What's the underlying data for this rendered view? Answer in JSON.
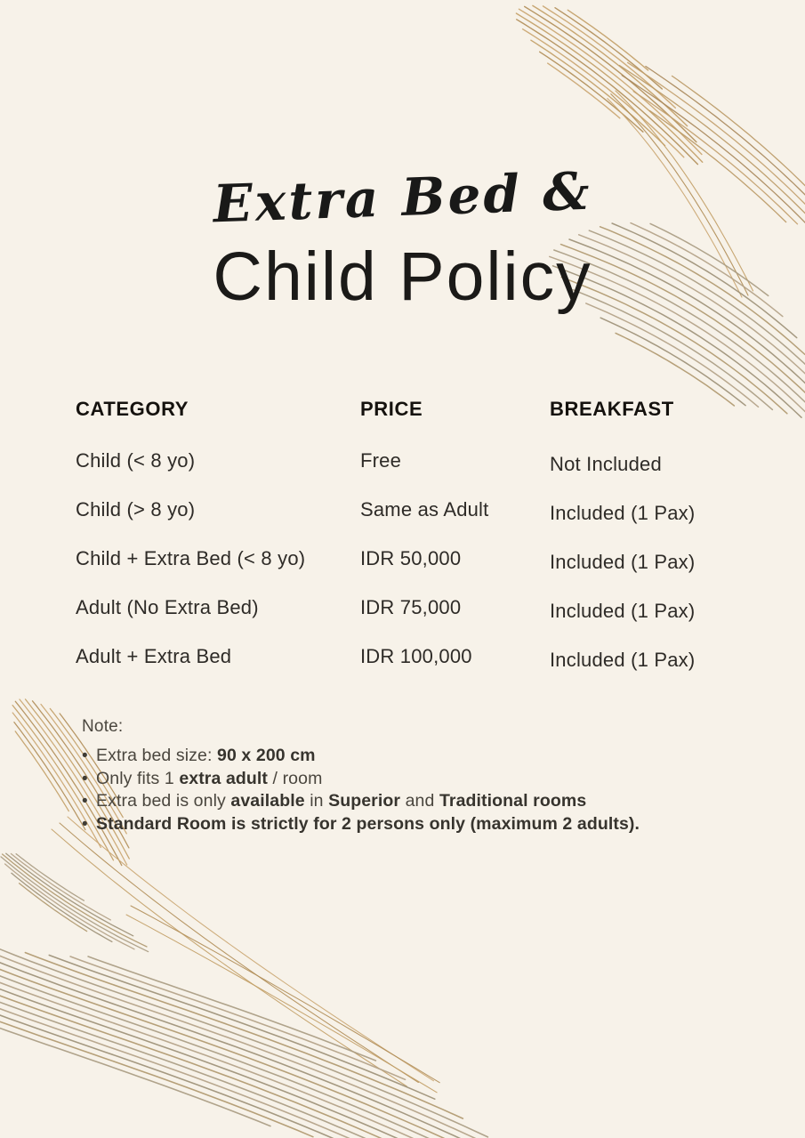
{
  "page": {
    "background_color": "#f7f2e9",
    "brush_color": "#b3946a",
    "text_color": "#2e2b27"
  },
  "title": {
    "script_line": "Extra Bed &",
    "main_line": "Child Policy"
  },
  "table": {
    "headers": [
      "CATEGORY",
      "PRICE",
      "BREAKFAST"
    ],
    "rows": [
      {
        "category": "Child (< 8 yo)",
        "price": "Free",
        "breakfast": "Not Included"
      },
      {
        "category": "Child (> 8 yo)",
        "price": "Same as Adult",
        "breakfast": "Included (1 Pax)"
      },
      {
        "category": "Child + Extra Bed (< 8 yo)",
        "price": "IDR 50,000",
        "breakfast": "Included (1 Pax)"
      },
      {
        "category": "Adult (No Extra Bed)",
        "price": "IDR 75,000",
        "breakfast": "Included (1 Pax)"
      },
      {
        "category": "Adult + Extra Bed",
        "price": "IDR 100,000",
        "breakfast": "Included (1 Pax)"
      }
    ]
  },
  "notes": {
    "label": "Note:",
    "bullet": "•",
    "items": [
      {
        "segments": [
          {
            "text": "Extra bed size: ",
            "bold": false
          },
          {
            "text": "90 x 200 cm",
            "bold": true
          }
        ]
      },
      {
        "segments": [
          {
            "text": "Only fits 1 ",
            "bold": false
          },
          {
            "text": "extra adult",
            "bold": true
          },
          {
            "text": " / room",
            "bold": false
          }
        ]
      },
      {
        "segments": [
          {
            "text": "Extra bed is only ",
            "bold": false
          },
          {
            "text": "available",
            "bold": true
          },
          {
            "text": " in ",
            "bold": false
          },
          {
            "text": "Superior",
            "bold": true
          },
          {
            "text": " and ",
            "bold": false
          },
          {
            "text": "Traditional rooms",
            "bold": true
          }
        ]
      },
      {
        "segments": [
          {
            "text": "Standard Room is strictly for 2 persons only (maximum 2 adults).",
            "bold": true
          }
        ]
      }
    ]
  },
  "decorations": {
    "top_right": "gold-brush-feather-strokes",
    "bottom_left": "gold-brush-feather-strokes"
  }
}
